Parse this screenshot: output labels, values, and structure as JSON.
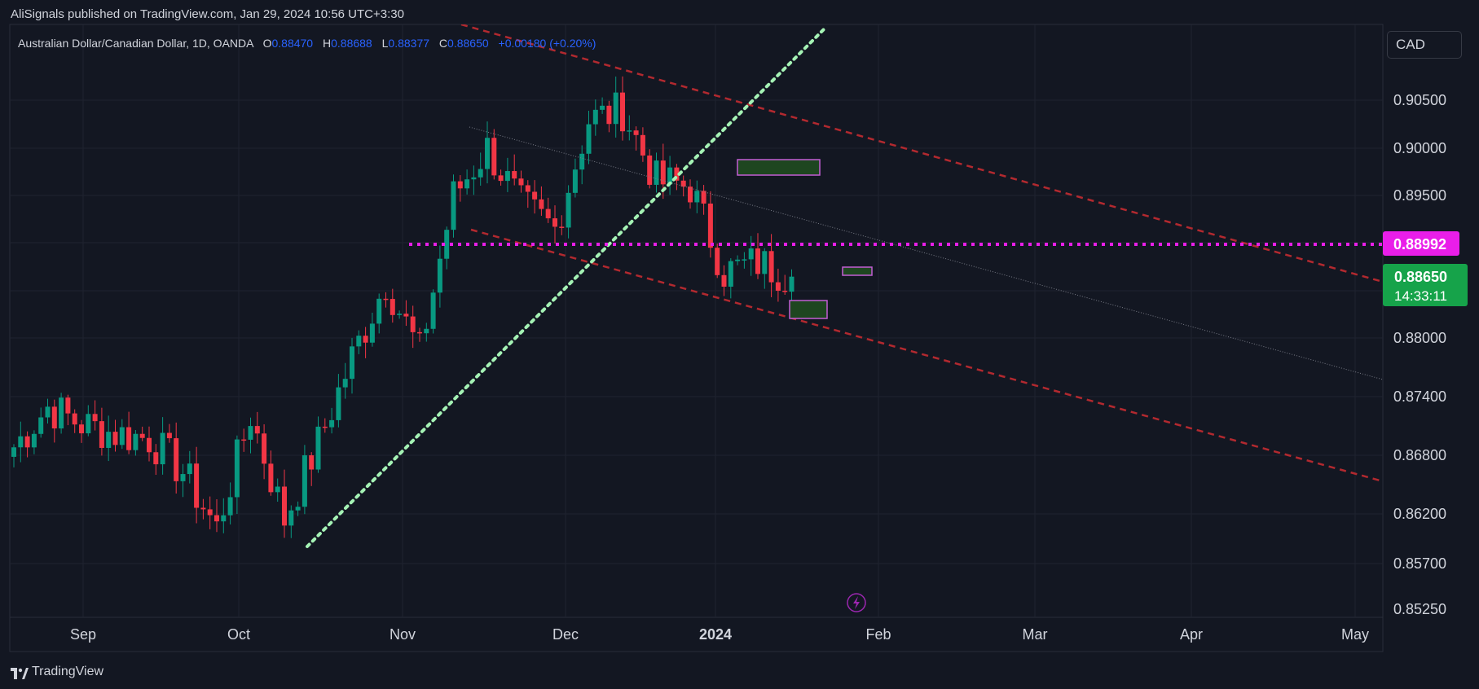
{
  "header": {
    "publish_line": "AliSignals published on TradingView.com, Jan 29, 2024 10:56 UTC+3:30"
  },
  "legend": {
    "symbol": "Australian Dollar/Canadian Dollar, 1D, OANDA",
    "o_label": "O",
    "o_value": "0.88470",
    "h_label": "H",
    "h_value": "0.88688",
    "l_label": "L",
    "l_value": "0.88377",
    "c_label": "C",
    "c_value": "0.88650",
    "change": "+0.00180 (+0.20%)"
  },
  "currency_button": "CAD",
  "price_axis": {
    "ticks": [
      "0.90500",
      "0.90000",
      "0.89500",
      "0.88000",
      "0.87400",
      "0.86800",
      "0.86200",
      "0.85700",
      "0.85250"
    ],
    "marked_level": {
      "label": "0.88992",
      "color": "#e91ee9"
    },
    "last_price": {
      "label": "0.88650",
      "countdown": "14:33:11",
      "color": "#089981"
    }
  },
  "time_axis": {
    "labels": [
      "Sep",
      "Oct",
      "Nov",
      "Dec",
      "2024",
      "Feb",
      "Mar",
      "Apr",
      "May"
    ]
  },
  "footer": {
    "brand": "TradingView"
  },
  "colors": {
    "up": "#089981",
    "down": "#f23645",
    "channel": "#b2292f",
    "trendline": "#a5f3b5",
    "level": "#e91ee9",
    "grid": "#1f2330"
  },
  "chart_data": {
    "type": "candlestick",
    "title": "Australian Dollar/Canadian Dollar, 1D, OANDA",
    "ylim": [
      0.8505,
      0.9105
    ],
    "series": [
      {
        "date": "2023-08-21",
        "close": 0.8686
      },
      {
        "date": "2023-08-28",
        "close": 0.8728
      },
      {
        "date": "2023-09-04",
        "close": 0.871
      },
      {
        "date": "2023-09-11",
        "close": 0.87
      },
      {
        "date": "2023-09-18",
        "close": 0.8695
      },
      {
        "date": "2023-09-25",
        "close": 0.866
      },
      {
        "date": "2023-10-02",
        "close": 0.86
      },
      {
        "date": "2023-10-09",
        "close": 0.872
      },
      {
        "date": "2023-10-16",
        "close": 0.861
      },
      {
        "date": "2023-10-23",
        "close": 0.869
      },
      {
        "date": "2023-10-30",
        "close": 0.878
      },
      {
        "date": "2023-11-06",
        "close": 0.886
      },
      {
        "date": "2023-11-13",
        "close": 0.8785
      },
      {
        "date": "2023-11-20",
        "close": 0.895
      },
      {
        "date": "2023-11-27",
        "close": 0.9
      },
      {
        "date": "2023-12-04",
        "close": 0.894
      },
      {
        "date": "2023-12-11",
        "close": 0.8915
      },
      {
        "date": "2023-12-18",
        "close": 0.903
      },
      {
        "date": "2023-12-25",
        "close": 0.904
      },
      {
        "date": "2024-01-01",
        "close": 0.8965
      },
      {
        "date": "2024-01-08",
        "close": 0.896
      },
      {
        "date": "2024-01-15",
        "close": 0.887
      },
      {
        "date": "2024-01-22",
        "close": 0.888
      },
      {
        "date": "2024-01-29",
        "close": 0.8865
      }
    ],
    "horizontal_level": 0.88992,
    "last_close": 0.8865
  }
}
